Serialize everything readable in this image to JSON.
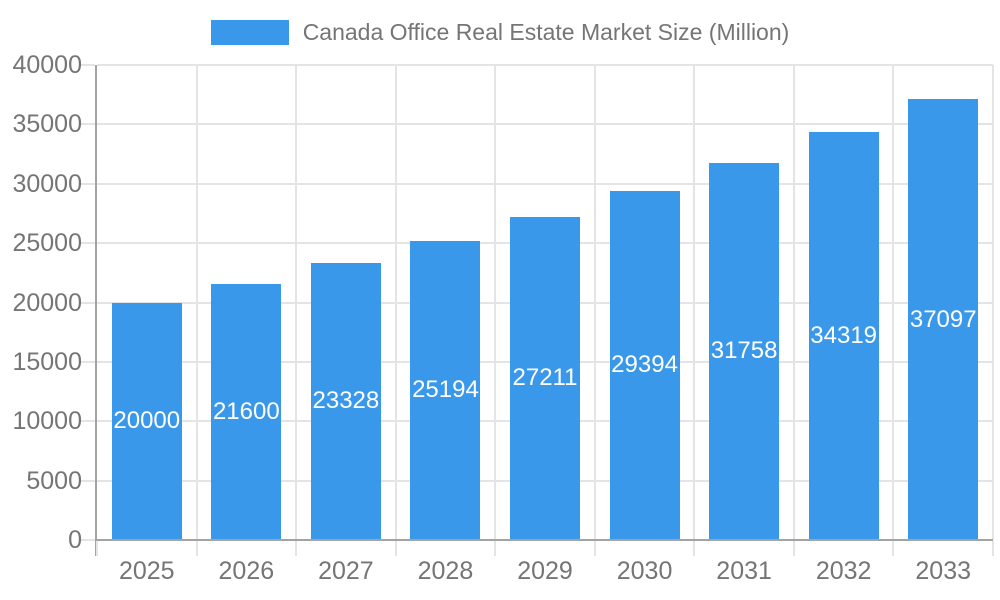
{
  "legend": {
    "label": "Canada Office Real Estate Market Size (Million)"
  },
  "colors": {
    "bar": "#3A98EB",
    "grid": "#E4E4E4",
    "axis": "#A3A3A3",
    "tick_text": "#757575",
    "value_text": "#FFFFFF"
  },
  "chart_data": {
    "type": "bar",
    "title": "Canada Office Real Estate Market Size (Million)",
    "xlabel": "",
    "ylabel": "",
    "categories": [
      "2025",
      "2026",
      "2027",
      "2028",
      "2029",
      "2030",
      "2031",
      "2032",
      "2033"
    ],
    "values": [
      20000,
      21600,
      23328,
      25194,
      27211,
      29394,
      31758,
      34319,
      37097
    ],
    "series": [
      {
        "name": "Canada Office Real Estate Market Size (Million)",
        "values": [
          20000,
          21600,
          23328,
          25194,
          27211,
          29394,
          31758,
          34319,
          37097
        ]
      }
    ],
    "ylim": [
      0,
      40000
    ],
    "yticks": [
      0,
      5000,
      10000,
      15000,
      20000,
      25000,
      30000,
      35000,
      40000
    ],
    "grid": true,
    "legend_position": "top-center",
    "value_labels": "inside-center-white"
  }
}
